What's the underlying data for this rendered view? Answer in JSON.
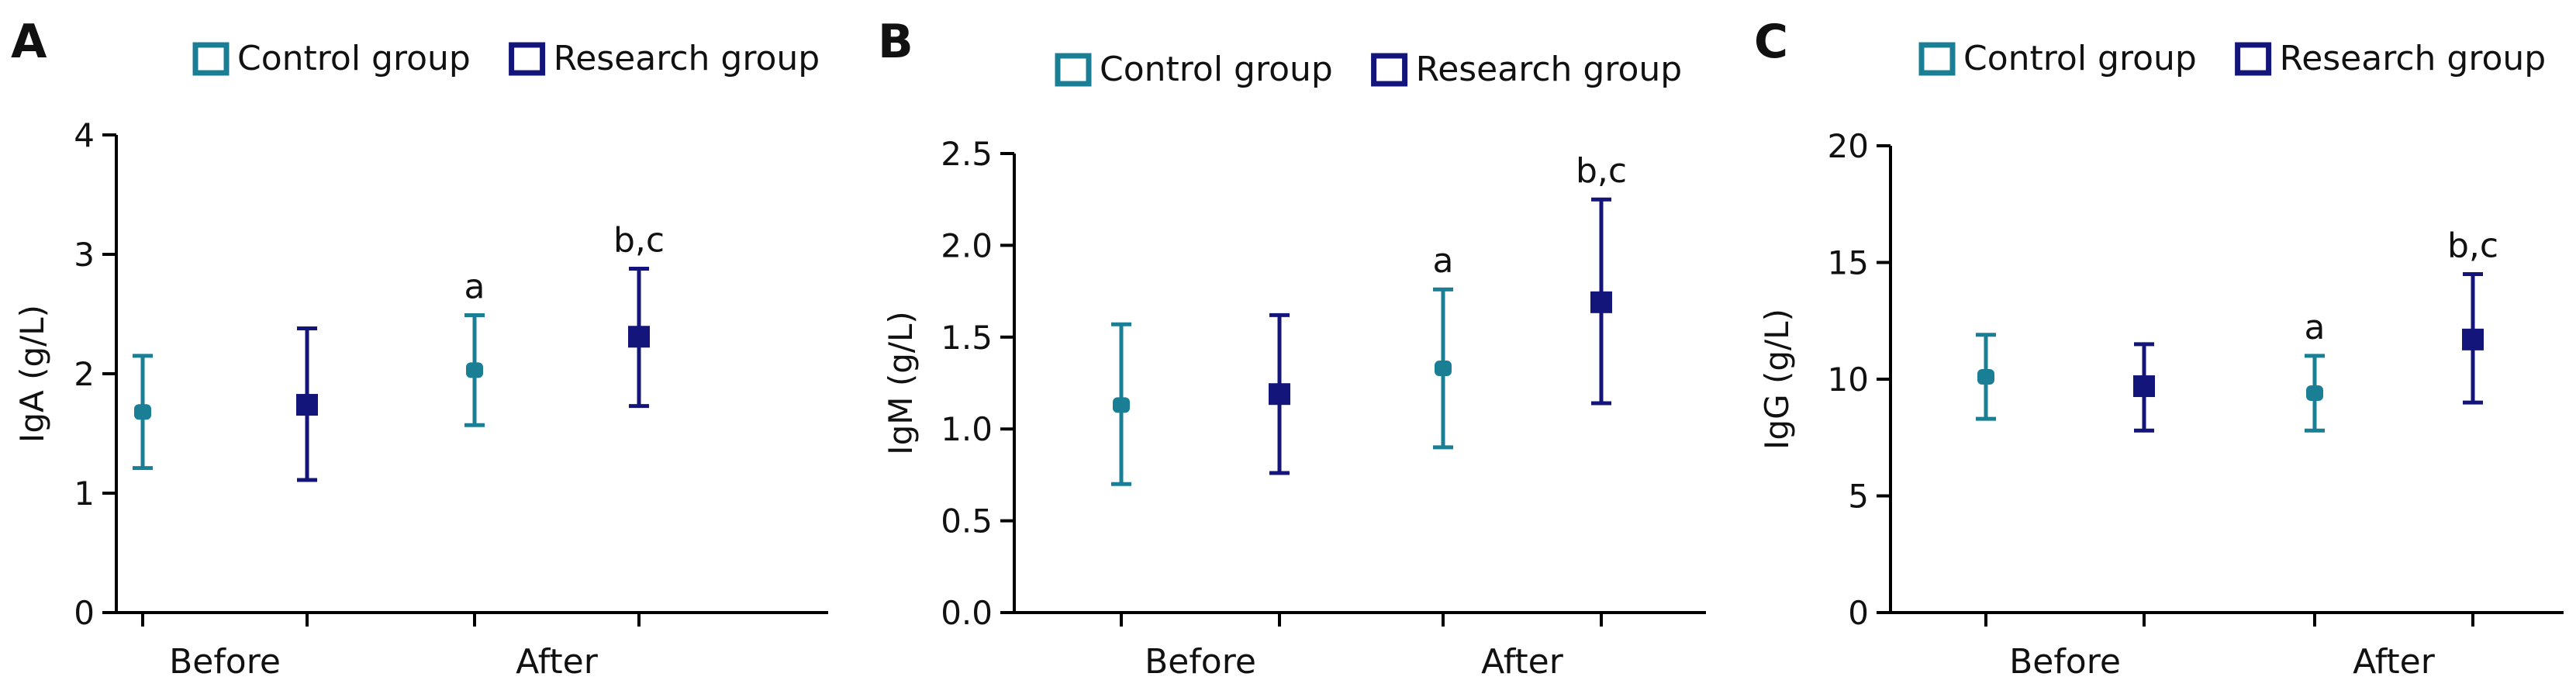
{
  "chart_data": [
    {
      "type": "scatter",
      "panel_label": "A",
      "ylabel": "IgA (g/L)",
      "xlabel": "",
      "categories": [
        "Before",
        "After"
      ],
      "ylim": [
        0,
        4
      ],
      "yticks": [
        "0",
        "1",
        "2",
        "3",
        "4"
      ],
      "legend": [
        "Control group",
        "Research group"
      ],
      "legend_position": "top",
      "grid": false,
      "series": [
        {
          "name": "Control group",
          "color": "#1a7f95",
          "marker": "circle",
          "points": [
            {
              "category": "Before",
              "mean": 1.68,
              "lower": 1.21,
              "upper": 2.15,
              "annotation": ""
            },
            {
              "category": "After",
              "mean": 2.03,
              "lower": 1.57,
              "upper": 2.49,
              "annotation": "a"
            }
          ]
        },
        {
          "name": "Research group",
          "color": "#14157a",
          "marker": "square",
          "points": [
            {
              "category": "Before",
              "mean": 1.74,
              "lower": 1.11,
              "upper": 2.38,
              "annotation": ""
            },
            {
              "category": "After",
              "mean": 2.31,
              "lower": 1.73,
              "upper": 2.88,
              "annotation": "b,c"
            }
          ]
        }
      ]
    },
    {
      "type": "scatter",
      "panel_label": "B",
      "ylabel": "IgM (g/L)",
      "xlabel": "",
      "categories": [
        "Before",
        "After"
      ],
      "ylim": [
        0,
        2.5
      ],
      "yticks": [
        "0.0",
        "0.5",
        "1.0",
        "1.5",
        "2.0",
        "2.5"
      ],
      "legend": [
        "Control group",
        "Research group"
      ],
      "legend_position": "top",
      "grid": false,
      "series": [
        {
          "name": "Control group",
          "color": "#1a7f95",
          "marker": "circle",
          "points": [
            {
              "category": "Before",
              "mean": 1.13,
              "lower": 0.7,
              "upper": 1.57,
              "annotation": ""
            },
            {
              "category": "After",
              "mean": 1.33,
              "lower": 0.9,
              "upper": 1.76,
              "annotation": "a"
            }
          ]
        },
        {
          "name": "Research group",
          "color": "#14157a",
          "marker": "square",
          "points": [
            {
              "category": "Before",
              "mean": 1.19,
              "lower": 0.76,
              "upper": 1.62,
              "annotation": ""
            },
            {
              "category": "After",
              "mean": 1.69,
              "lower": 1.14,
              "upper": 2.25,
              "annotation": "b,c"
            }
          ]
        }
      ]
    },
    {
      "type": "scatter",
      "panel_label": "C",
      "ylabel": "IgG (g/L)",
      "xlabel": "",
      "categories": [
        "Before",
        "After"
      ],
      "ylim": [
        0,
        20
      ],
      "yticks": [
        "0",
        "5",
        "10",
        "15",
        "20"
      ],
      "legend": [
        "Control group",
        "Research group"
      ],
      "legend_position": "top",
      "grid": false,
      "series": [
        {
          "name": "Control group",
          "color": "#1a7f95",
          "marker": "circle",
          "points": [
            {
              "category": "Before",
              "mean": 10.1,
              "lower": 8.3,
              "upper": 11.9,
              "annotation": ""
            },
            {
              "category": "After",
              "mean": 9.4,
              "lower": 7.8,
              "upper": 11.0,
              "annotation": "a"
            }
          ]
        },
        {
          "name": "Research group",
          "color": "#14157a",
          "marker": "square",
          "points": [
            {
              "category": "Before",
              "mean": 9.7,
              "lower": 7.8,
              "upper": 11.5,
              "annotation": ""
            },
            {
              "category": "After",
              "mean": 11.7,
              "lower": 9.0,
              "upper": 14.5,
              "annotation": "b,c"
            }
          ]
        }
      ]
    }
  ]
}
